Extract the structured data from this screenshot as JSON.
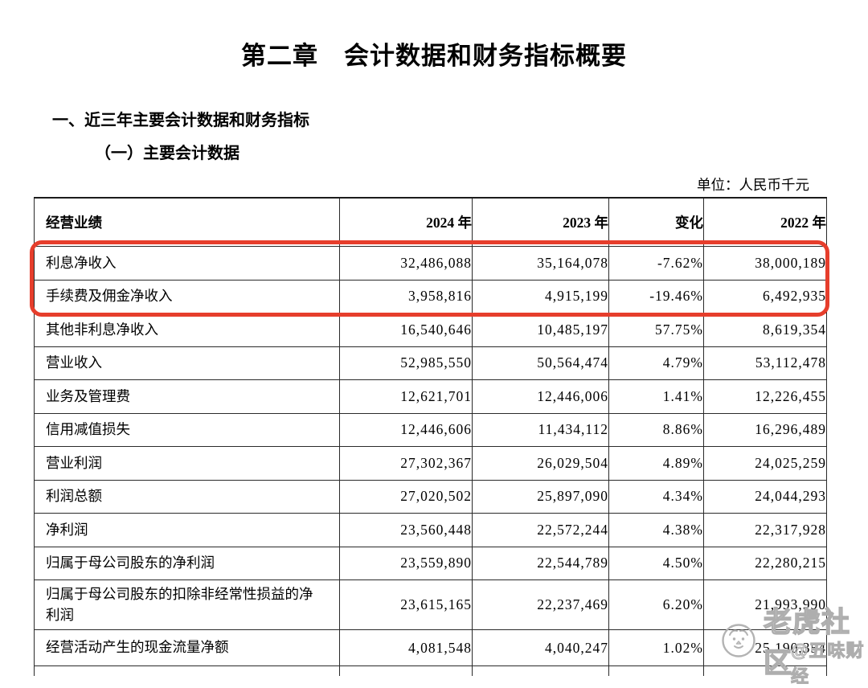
{
  "page": {
    "chapter_title": "第二章　会计数据和财务指标概要",
    "section_heading": "一、近三年主要会计数据和财务指标",
    "subsection_heading": "（一）主要会计数据",
    "unit_note": "单位：人民币千元"
  },
  "table": {
    "headers": [
      "经营业绩",
      "2024 年",
      "2023 年",
      "变化",
      "2022 年"
    ],
    "rows": [
      [
        "利息净收入",
        "32,486,088",
        "35,164,078",
        "-7.62%",
        "38,000,189"
      ],
      [
        "手续费及佣金净收入",
        "3,958,816",
        "4,915,199",
        "-19.46%",
        "6,492,935"
      ],
      [
        "其他非利息净收入",
        "16,540,646",
        "10,485,197",
        "57.75%",
        "8,619,354"
      ],
      [
        "营业收入",
        "52,985,550",
        "50,564,474",
        "4.79%",
        "53,112,478"
      ],
      [
        "业务及管理费",
        "12,621,701",
        "12,446,006",
        "1.41%",
        "12,226,455"
      ],
      [
        "信用减值损失",
        "12,446,606",
        "11,434,112",
        "8.86%",
        "16,296,489"
      ],
      [
        "营业利润",
        "27,302,367",
        "26,029,504",
        "4.89%",
        "24,025,259"
      ],
      [
        "利润总额",
        "27,020,502",
        "25,897,090",
        "4.34%",
        "24,044,293"
      ],
      [
        "净利润",
        "23,560,448",
        "22,572,244",
        "4.38%",
        "22,317,928"
      ],
      [
        "归属于母公司股东的净利润",
        "23,559,890",
        "22,544,789",
        "4.50%",
        "22,280,215"
      ],
      [
        "归属于母公司股东的扣除非经常性损益的净利润",
        "23,615,165",
        "22,237,469",
        "6.20%",
        "21,993,990"
      ],
      [
        "经营活动产生的现金流量净额",
        "4,081,548",
        "4,040,247",
        "1.02%",
        "25,190,354"
      ]
    ],
    "highlighted_row_indexes": [
      0,
      1
    ],
    "highlight_color": "#e63e2c"
  },
  "watermark": {
    "brand": "老虎社区",
    "handle": "@五味财经",
    "color": "#aeaeae",
    "logo": "tiger-face-icon"
  }
}
